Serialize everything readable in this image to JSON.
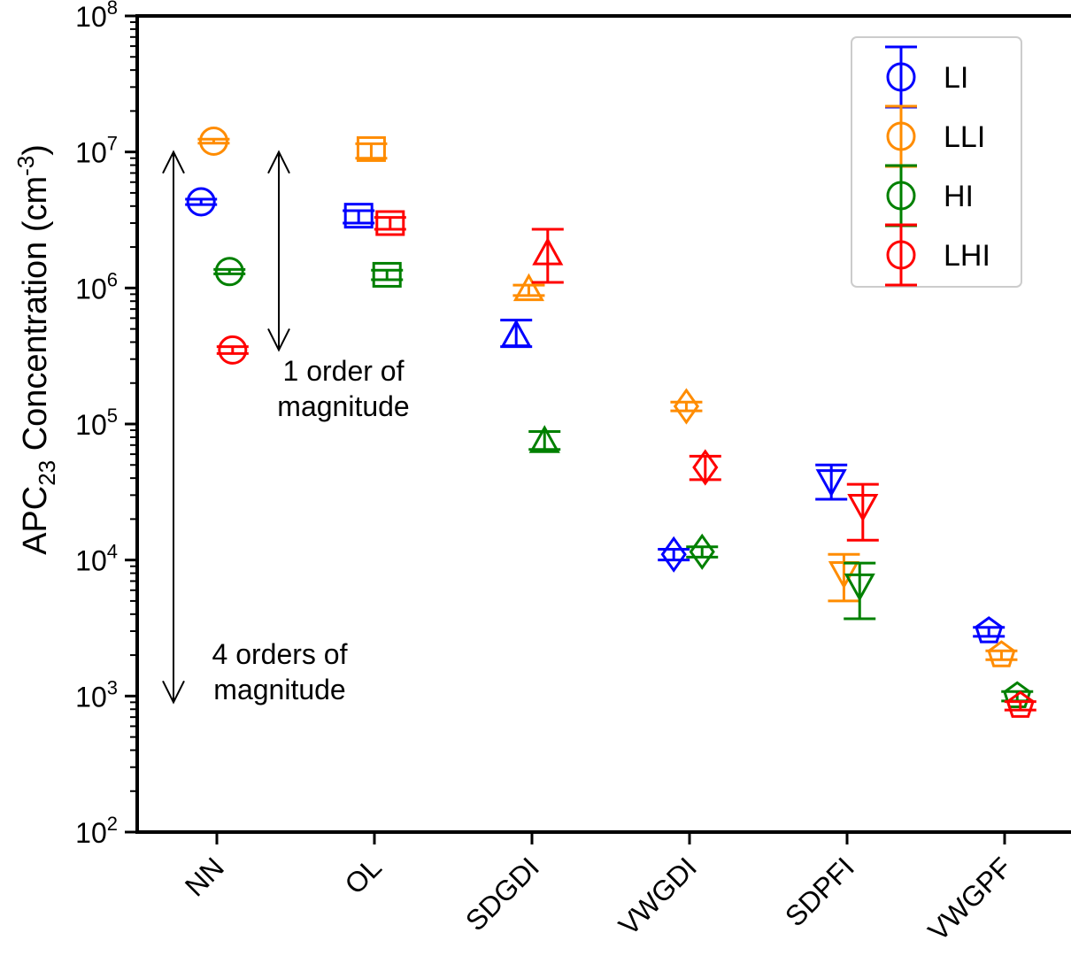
{
  "chart_data": {
    "type": "scatter",
    "ylabel": {
      "main": "APC",
      "sub": "23",
      "rest": " Concentration (cm",
      "sup": "-3",
      "end": ")"
    },
    "xlabel": "",
    "yscale": "log",
    "ylim": [
      100,
      100000000
    ],
    "y_ticks": [
      {
        "base": "10",
        "exp": "2",
        "value": 100
      },
      {
        "base": "10",
        "exp": "3",
        "value": 1000
      },
      {
        "base": "10",
        "exp": "4",
        "value": 10000
      },
      {
        "base": "10",
        "exp": "5",
        "value": 100000
      },
      {
        "base": "10",
        "exp": "6",
        "value": 1000000
      },
      {
        "base": "10",
        "exp": "7",
        "value": 10000000
      },
      {
        "base": "10",
        "exp": "8",
        "value": 100000000
      }
    ],
    "categories": [
      "NN",
      "OL",
      "SDGDI",
      "VWGDI",
      "SDPFI",
      "VWGPF"
    ],
    "markers": [
      "circle",
      "square",
      "triangle-up",
      "diamond",
      "triangle-down",
      "pentagon"
    ],
    "legend_position": "top-right",
    "series": [
      {
        "name": "LI",
        "color": "#0000ff",
        "offset": -0.1,
        "values": [
          4300000,
          3400000,
          450000,
          11000,
          38000,
          3000
        ],
        "err_low": [
          4100000,
          3000000,
          370000,
          10000,
          28000,
          2750
        ],
        "err_high": [
          4500000,
          3700000,
          580000,
          12000,
          50000,
          3200
        ]
      },
      {
        "name": "LLI",
        "color": "#ff8c00",
        "offset": -0.02,
        "values": [
          12000000,
          10500000,
          980000,
          135000,
          8000,
          2000
        ],
        "err_low": [
          11600000,
          9000000,
          880000,
          125000,
          5000,
          1850
        ],
        "err_high": [
          12400000,
          11500000,
          1050000,
          145000,
          11000,
          2150
        ]
      },
      {
        "name": "HI",
        "color": "#008000",
        "offset": 0.08,
        "values": [
          1320000,
          1250000,
          75000,
          11500,
          6500,
          1000
        ],
        "err_low": [
          1270000,
          1150000,
          65000,
          10500,
          3700,
          920
        ],
        "err_high": [
          1370000,
          1350000,
          88000,
          12500,
          9500,
          1080
        ]
      },
      {
        "name": "LHI",
        "color": "#ff0000",
        "offset": 0.1,
        "values": [
          350000,
          3000000,
          1800000,
          48000,
          25000,
          850
        ],
        "err_low": [
          330000,
          2700000,
          1100000,
          39000,
          14000,
          790
        ],
        "err_high": [
          370000,
          3300000,
          2700000,
          58000,
          36000,
          910
        ]
      }
    ],
    "annotations": [
      {
        "lines": [
          "1 order of",
          "magnitude"
        ],
        "arrow_from": 10000000,
        "arrow_to": 350000
      },
      {
        "lines": [
          "4 orders of",
          "magnitude"
        ],
        "arrow_from": 10000000,
        "arrow_to": 900
      }
    ]
  }
}
